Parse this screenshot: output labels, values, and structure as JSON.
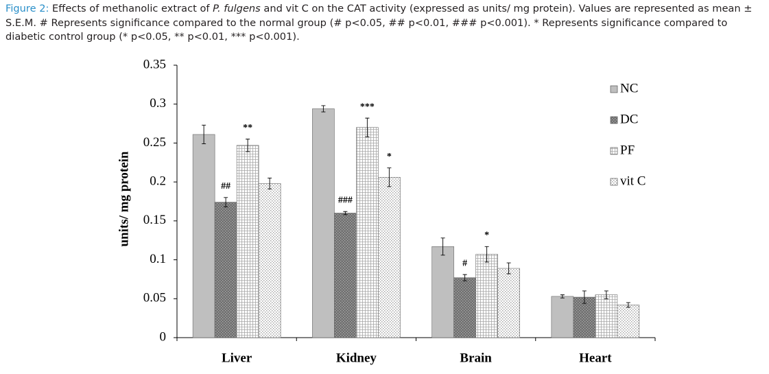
{
  "caption": {
    "label": "Figure 2:",
    "before": "Effects of methanolic extract of",
    "italic": "P. fulgens",
    "after": "and vit C on the CAT activity (expressed as units/ mg protein). Values are represented as mean ± S.E.M. # Represents significance compared to the normal group (# p<0.05, ## p<0.01, ### p<0.001). * Represents significance compared to diabetic control group (* p<0.05, ** p<0.01, *** p<0.001)."
  },
  "chart_data": {
    "type": "bar",
    "y_label": "units/ mg protein",
    "categories": [
      "Liver",
      "Kidney",
      "Brain",
      "Heart"
    ],
    "ylim": [
      0,
      0.35
    ],
    "yticks": [
      0,
      0.05,
      0.1,
      0.15,
      0.2,
      0.25,
      0.3,
      0.35
    ],
    "legend": "right",
    "series": [
      {
        "name": "NC",
        "color": "#bfbfbf",
        "pattern": "solid",
        "values": [
          0.261,
          0.294,
          0.117,
          0.053
        ],
        "errors": [
          0.012,
          0.004,
          0.011,
          0.002
        ],
        "annotations": [
          null,
          null,
          null,
          null
        ]
      },
      {
        "name": "DC",
        "color": "#707070",
        "pattern": "dots",
        "values": [
          0.174,
          0.16,
          0.077,
          0.052
        ],
        "errors": [
          0.006,
          0.002,
          0.004,
          0.008
        ],
        "annotations": [
          "##",
          "###",
          "#",
          null
        ]
      },
      {
        "name": "PF",
        "color": "#a6a6a6",
        "pattern": "grid",
        "values": [
          0.247,
          0.27,
          0.107,
          0.055
        ],
        "errors": [
          0.008,
          0.012,
          0.01,
          0.005
        ],
        "annotations": [
          "**",
          "***",
          "*",
          null
        ]
      },
      {
        "name": "vit C",
        "color": "#a6a6a6",
        "pattern": "checker",
        "values": [
          0.198,
          0.206,
          0.089,
          0.042
        ],
        "errors": [
          0.007,
          0.012,
          0.007,
          0.003
        ],
        "annotations": [
          null,
          "*",
          null,
          null
        ]
      }
    ]
  }
}
